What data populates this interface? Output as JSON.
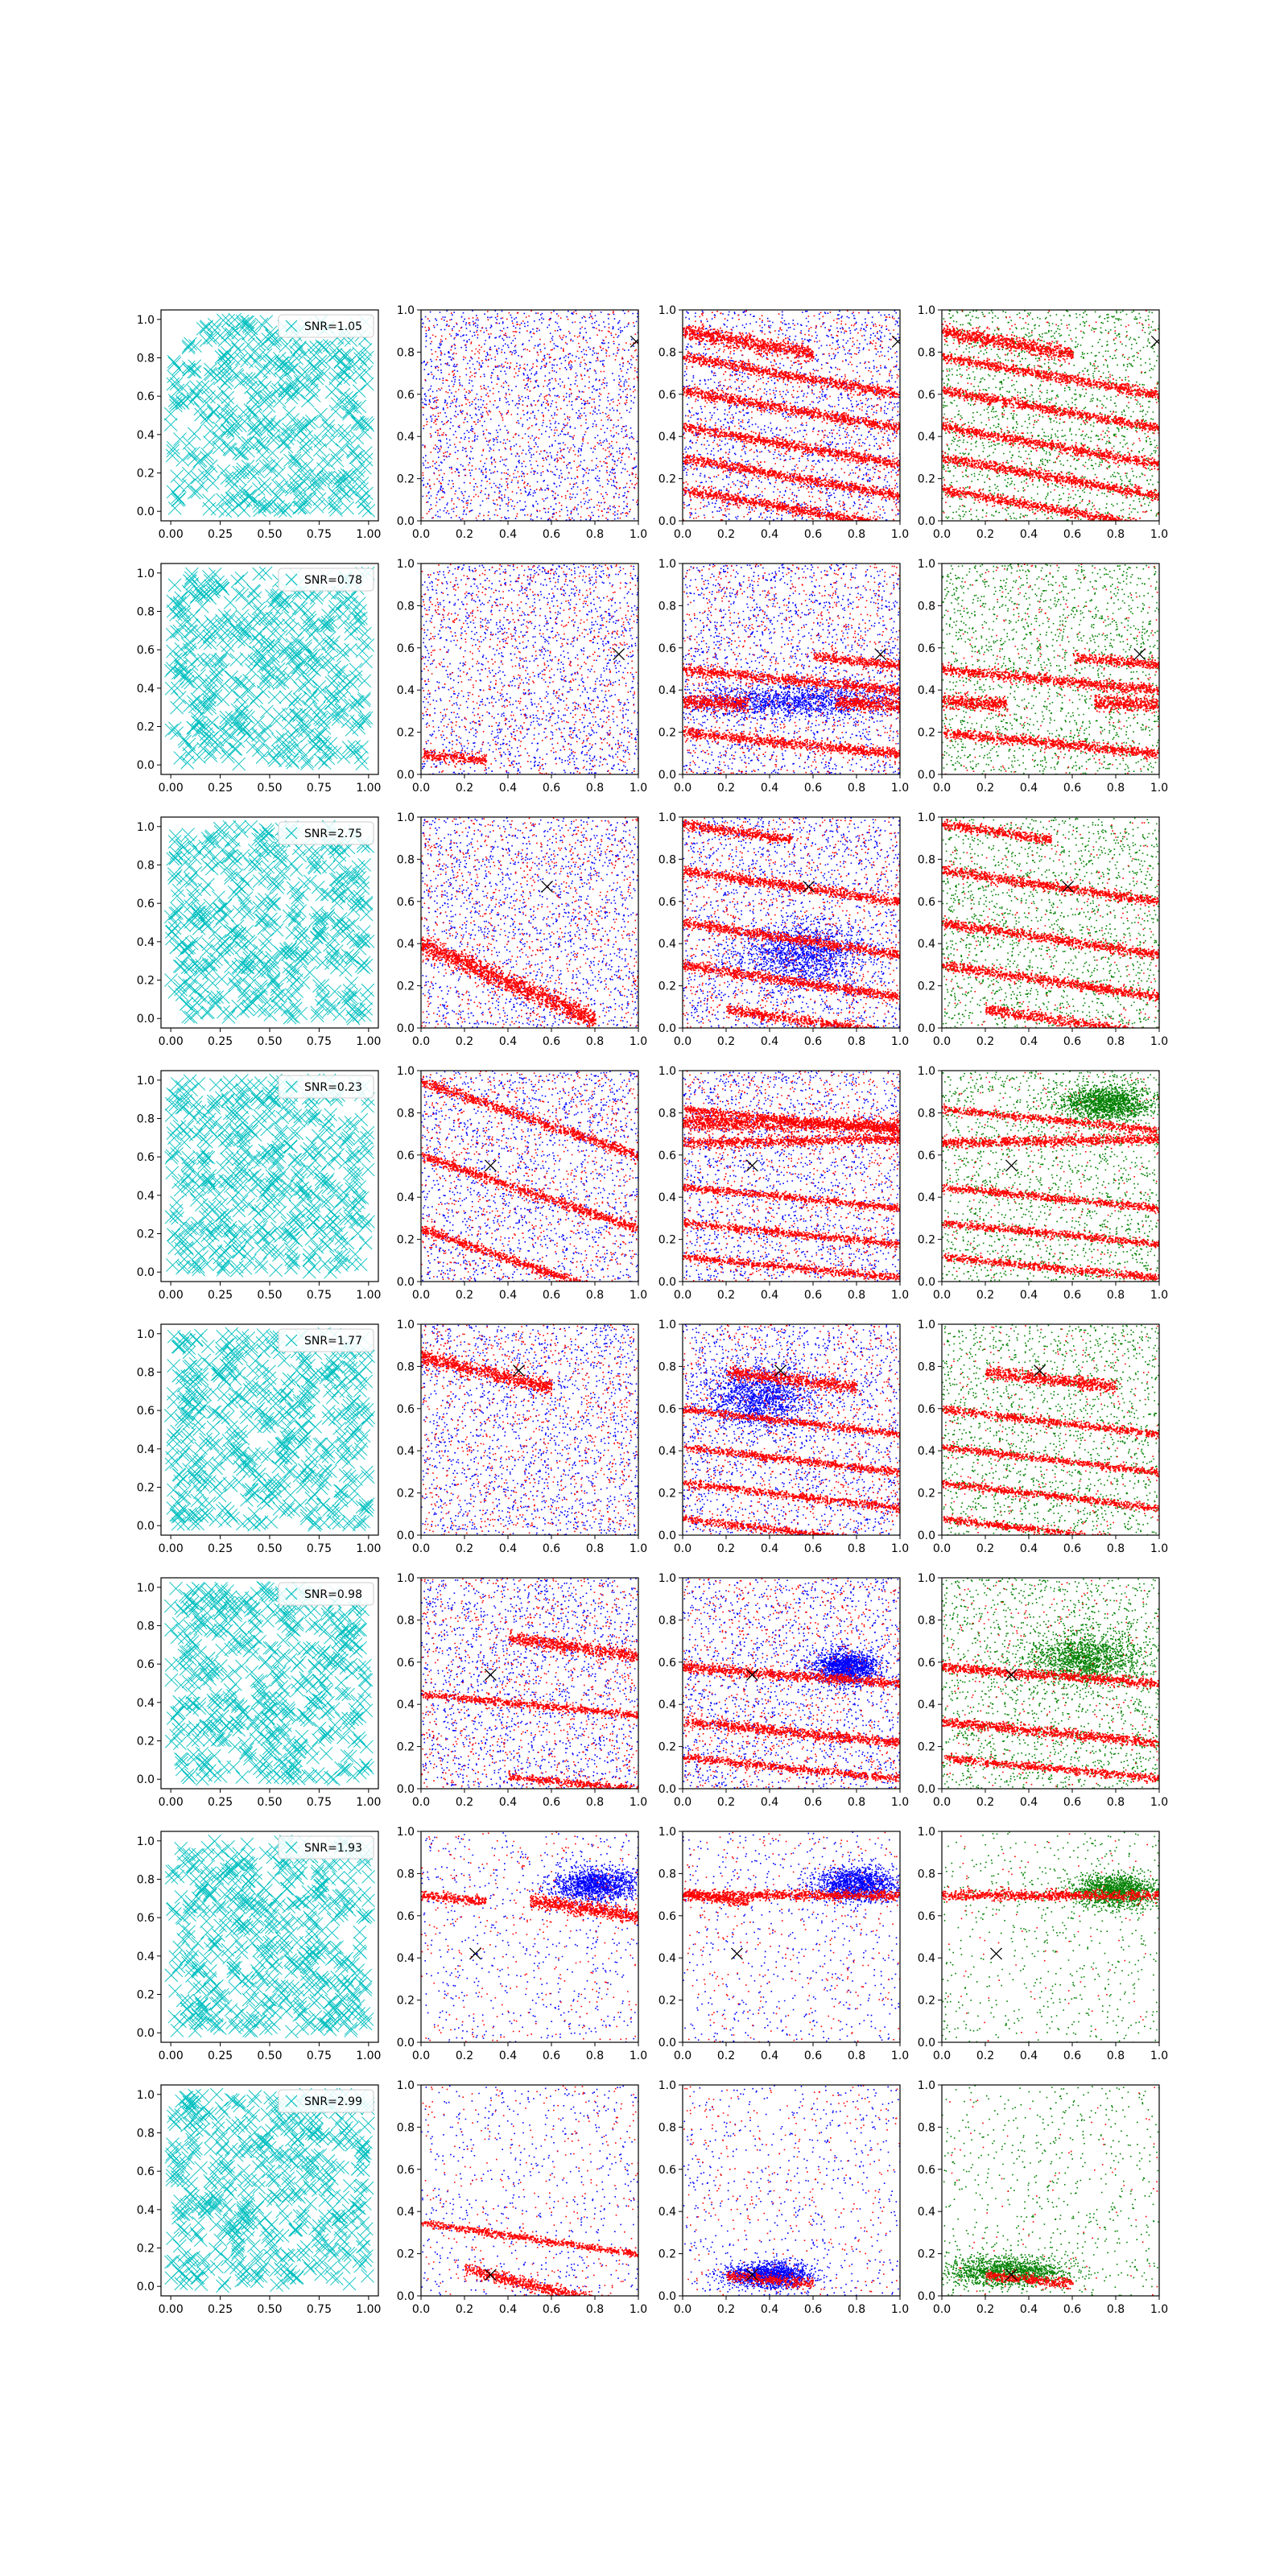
{
  "chart_data": {
    "type": "scatter",
    "layout": "8 rows x 4 columns of scatter subplots",
    "xlim": [
      0,
      1
    ],
    "ylim": [
      0,
      1
    ],
    "grid": false,
    "panel1_xticks": [
      "0.00",
      "0.25",
      "0.50",
      "0.75",
      "1.00"
    ],
    "panel1_yticks": [
      "0.0",
      "0.2",
      "0.4",
      "0.6",
      "0.8",
      "1.0"
    ],
    "panel_xticks": [
      "0.0",
      "0.2",
      "0.4",
      "0.6",
      "0.8",
      "1.0"
    ],
    "panel_yticks": [
      "0.0",
      "0.2",
      "0.4",
      "0.6",
      "0.8",
      "1.0"
    ],
    "legend_placement": "upper right",
    "colors": {
      "uniform_marker": "#00bfbf",
      "series_red": "#ff0000",
      "series_blue": "#0000ff",
      "series_green": "#008000",
      "target_marker": "#000000"
    },
    "rows": [
      {
        "snr_label": "SNR=1.05",
        "target": [
          0.99,
          0.85
        ],
        "bands": [
          {
            "y0": 0.9,
            "slope": -0.18,
            "w": 0.03,
            "x0": 0.0,
            "x1": 0.6,
            "col": [
              2,
              3
            ]
          },
          {
            "y0": 0.78,
            "slope": -0.18,
            "w": 0.02,
            "x0": 0.0,
            "x1": 1.0,
            "col": [
              2,
              3
            ]
          },
          {
            "y0": 0.62,
            "slope": -0.18,
            "w": 0.02,
            "x0": 0.0,
            "x1": 1.0,
            "col": [
              2,
              3
            ]
          },
          {
            "y0": 0.45,
            "slope": -0.18,
            "w": 0.02,
            "x0": 0.0,
            "x1": 1.0,
            "col": [
              2,
              3
            ]
          },
          {
            "y0": 0.3,
            "slope": -0.18,
            "w": 0.02,
            "x0": 0.0,
            "x1": 1.0,
            "col": [
              2,
              3
            ]
          },
          {
            "y0": 0.15,
            "slope": -0.18,
            "w": 0.02,
            "x0": 0.0,
            "x1": 1.0,
            "col": [
              2,
              3
            ]
          }
        ],
        "blobs": []
      },
      {
        "snr_label": "SNR=0.78",
        "target": [
          0.91,
          0.57
        ],
        "bands": [
          {
            "y0": 0.35,
            "slope": -0.05,
            "w": 0.03,
            "x0": 0.0,
            "x1": 0.3,
            "col": [
              2,
              3
            ]
          },
          {
            "y0": 0.38,
            "slope": -0.05,
            "w": 0.03,
            "x0": 0.7,
            "x1": 1.0,
            "col": [
              2,
              3
            ]
          },
          {
            "y0": 0.62,
            "slope": -0.1,
            "w": 0.02,
            "x0": 0.6,
            "x1": 1.0,
            "col": [
              2,
              3
            ]
          },
          {
            "y0": 0.2,
            "slope": -0.1,
            "w": 0.02,
            "x0": 0.0,
            "x1": 1.0,
            "col": [
              2,
              3
            ]
          },
          {
            "y0": 0.5,
            "slope": -0.1,
            "w": 0.02,
            "x0": 0.0,
            "x1": 1.0,
            "col": [
              2,
              3
            ]
          },
          {
            "y0": 0.1,
            "slope": -0.1,
            "w": 0.02,
            "x0": 0.0,
            "x1": 0.3,
            "col": [
              1
            ]
          }
        ],
        "blobs": [
          {
            "cx": 0.5,
            "cy": 0.35,
            "rx": 0.5,
            "ry": 0.08,
            "col": [
              2
            ]
          }
        ]
      },
      {
        "snr_label": "SNR=2.75",
        "target": [
          0.58,
          0.67
        ],
        "bands": [
          {
            "y0": 0.97,
            "slope": -0.15,
            "w": 0.02,
            "x0": 0.0,
            "x1": 0.5,
            "col": [
              2,
              3
            ]
          },
          {
            "y0": 0.75,
            "slope": -0.15,
            "w": 0.02,
            "x0": 0.0,
            "x1": 1.0,
            "col": [
              2,
              3
            ]
          },
          {
            "y0": 0.5,
            "slope": -0.15,
            "w": 0.02,
            "x0": 0.0,
            "x1": 1.0,
            "col": [
              2,
              3
            ]
          },
          {
            "y0": 0.3,
            "slope": -0.15,
            "w": 0.02,
            "x0": 0.0,
            "x1": 1.0,
            "col": [
              2,
              3
            ]
          },
          {
            "y0": 0.12,
            "slope": -0.15,
            "w": 0.02,
            "x0": 0.2,
            "x1": 1.0,
            "col": [
              2,
              3
            ]
          },
          {
            "y0": 0.4,
            "slope": -0.45,
            "w": 0.04,
            "x0": 0.0,
            "x1": 0.8,
            "col": [
              1
            ]
          }
        ],
        "blobs": [
          {
            "cx": 0.55,
            "cy": 0.35,
            "rx": 0.3,
            "ry": 0.15,
            "col": [
              2
            ]
          }
        ]
      },
      {
        "snr_label": "SNR=0.23",
        "target": [
          0.32,
          0.55
        ],
        "bands": [
          {
            "y0": 0.76,
            "slope": -0.02,
            "w": 0.03,
            "x0": 0.0,
            "x1": 1.0,
            "col": [
              2
            ]
          },
          {
            "y0": 0.66,
            "slope": 0.02,
            "w": 0.02,
            "x0": 0.0,
            "x1": 1.0,
            "col": [
              2,
              3
            ]
          },
          {
            "y0": 0.82,
            "slope": -0.1,
            "w": 0.015,
            "x0": 0.0,
            "x1": 1.0,
            "col": [
              2,
              3
            ]
          },
          {
            "y0": 0.45,
            "slope": -0.1,
            "w": 0.015,
            "x0": 0.0,
            "x1": 1.0,
            "col": [
              2,
              3
            ]
          },
          {
            "y0": 0.28,
            "slope": -0.1,
            "w": 0.015,
            "x0": 0.0,
            "x1": 1.0,
            "col": [
              2,
              3
            ]
          },
          {
            "y0": 0.12,
            "slope": -0.1,
            "w": 0.015,
            "x0": 0.0,
            "x1": 1.0,
            "col": [
              2,
              3
            ]
          },
          {
            "y0": 0.95,
            "slope": -0.35,
            "w": 0.02,
            "x0": 0.0,
            "x1": 1.0,
            "col": [
              1
            ]
          },
          {
            "y0": 0.6,
            "slope": -0.35,
            "w": 0.02,
            "x0": 0.0,
            "x1": 1.0,
            "col": [
              1
            ]
          },
          {
            "y0": 0.25,
            "slope": -0.35,
            "w": 0.02,
            "x0": 0.0,
            "x1": 1.0,
            "col": [
              1
            ]
          }
        ],
        "blobs": [
          {
            "cx": 0.75,
            "cy": 0.85,
            "rx": 0.2,
            "ry": 0.08,
            "col": [
              3
            ]
          }
        ]
      },
      {
        "snr_label": "SNR=1.77",
        "target": [
          0.45,
          0.78
        ],
        "bands": [
          {
            "y0": 0.85,
            "slope": -0.25,
            "w": 0.03,
            "x0": 0.0,
            "x1": 0.6,
            "col": [
              1
            ]
          },
          {
            "y0": 0.8,
            "slope": -0.12,
            "w": 0.025,
            "x0": 0.2,
            "x1": 0.8,
            "col": [
              2,
              3
            ]
          },
          {
            "y0": 0.6,
            "slope": -0.12,
            "w": 0.015,
            "x0": 0.0,
            "x1": 1.0,
            "col": [
              2,
              3
            ]
          },
          {
            "y0": 0.42,
            "slope": -0.12,
            "w": 0.015,
            "x0": 0.0,
            "x1": 1.0,
            "col": [
              2,
              3
            ]
          },
          {
            "y0": 0.25,
            "slope": -0.12,
            "w": 0.015,
            "x0": 0.0,
            "x1": 1.0,
            "col": [
              2,
              3
            ]
          },
          {
            "y0": 0.08,
            "slope": -0.12,
            "w": 0.015,
            "x0": 0.0,
            "x1": 1.0,
            "col": [
              2,
              3
            ]
          }
        ],
        "blobs": [
          {
            "cx": 0.35,
            "cy": 0.65,
            "rx": 0.25,
            "ry": 0.15,
            "col": [
              2
            ]
          }
        ]
      },
      {
        "snr_label": "SNR=0.98",
        "target": [
          0.32,
          0.54
        ],
        "bands": [
          {
            "y0": 0.78,
            "slope": -0.15,
            "w": 0.025,
            "x0": 0.4,
            "x1": 1.0,
            "col": [
              1
            ]
          },
          {
            "y0": 0.58,
            "slope": -0.08,
            "w": 0.02,
            "x0": 0.0,
            "x1": 1.0,
            "col": [
              2,
              3
            ]
          },
          {
            "y0": 0.32,
            "slope": -0.1,
            "w": 0.02,
            "x0": 0.0,
            "x1": 1.0,
            "col": [
              2,
              3
            ]
          },
          {
            "y0": 0.15,
            "slope": -0.1,
            "w": 0.015,
            "x0": 0.0,
            "x1": 1.0,
            "col": [
              2,
              3
            ]
          },
          {
            "y0": 0.45,
            "slope": -0.1,
            "w": 0.015,
            "x0": 0.0,
            "x1": 1.0,
            "col": [
              1
            ]
          },
          {
            "y0": 0.1,
            "slope": -0.1,
            "w": 0.015,
            "x0": 0.4,
            "x1": 1.0,
            "col": [
              1
            ]
          }
        ],
        "blobs": [
          {
            "cx": 0.75,
            "cy": 0.58,
            "rx": 0.15,
            "ry": 0.08,
            "col": [
              2
            ]
          },
          {
            "cx": 0.65,
            "cy": 0.62,
            "rx": 0.25,
            "ry": 0.12,
            "col": [
              3
            ]
          }
        ]
      },
      {
        "snr_label": "SNR=1.93",
        "target": [
          0.25,
          0.42
        ],
        "bands": [
          {
            "y0": 0.7,
            "slope": -0.1,
            "w": 0.02,
            "x0": 0.0,
            "x1": 0.3,
            "col": [
              1,
              2
            ]
          },
          {
            "y0": 0.75,
            "slope": -0.15,
            "w": 0.03,
            "x0": 0.5,
            "x1": 1.0,
            "col": [
              1
            ]
          },
          {
            "y0": 0.7,
            "slope": 0.0,
            "w": 0.02,
            "x0": 0.0,
            "x1": 1.0,
            "col": [
              2,
              3
            ]
          }
        ],
        "blobs": [
          {
            "cx": 0.8,
            "cy": 0.75,
            "rx": 0.2,
            "ry": 0.08,
            "col": [
              1,
              2
            ]
          },
          {
            "cx": 0.8,
            "cy": 0.72,
            "rx": 0.2,
            "ry": 0.08,
            "col": [
              3
            ]
          }
        ]
      },
      {
        "snr_label": "SNR=2.99",
        "target": [
          0.32,
          0.1
        ],
        "bands": [
          {
            "y0": 0.18,
            "slope": -0.25,
            "w": 0.025,
            "x0": 0.2,
            "x1": 0.8,
            "col": [
              1
            ]
          },
          {
            "y0": 0.35,
            "slope": -0.15,
            "w": 0.015,
            "x0": 0.0,
            "x1": 1.0,
            "col": [
              1
            ]
          },
          {
            "y0": 0.12,
            "slope": -0.1,
            "w": 0.02,
            "x0": 0.2,
            "x1": 0.6,
            "col": [
              2,
              3
            ]
          }
        ],
        "blobs": [
          {
            "cx": 0.4,
            "cy": 0.1,
            "rx": 0.2,
            "ry": 0.06,
            "col": [
              2
            ]
          },
          {
            "cx": 0.3,
            "cy": 0.12,
            "rx": 0.3,
            "ry": 0.07,
            "col": [
              3
            ]
          }
        ]
      }
    ]
  }
}
